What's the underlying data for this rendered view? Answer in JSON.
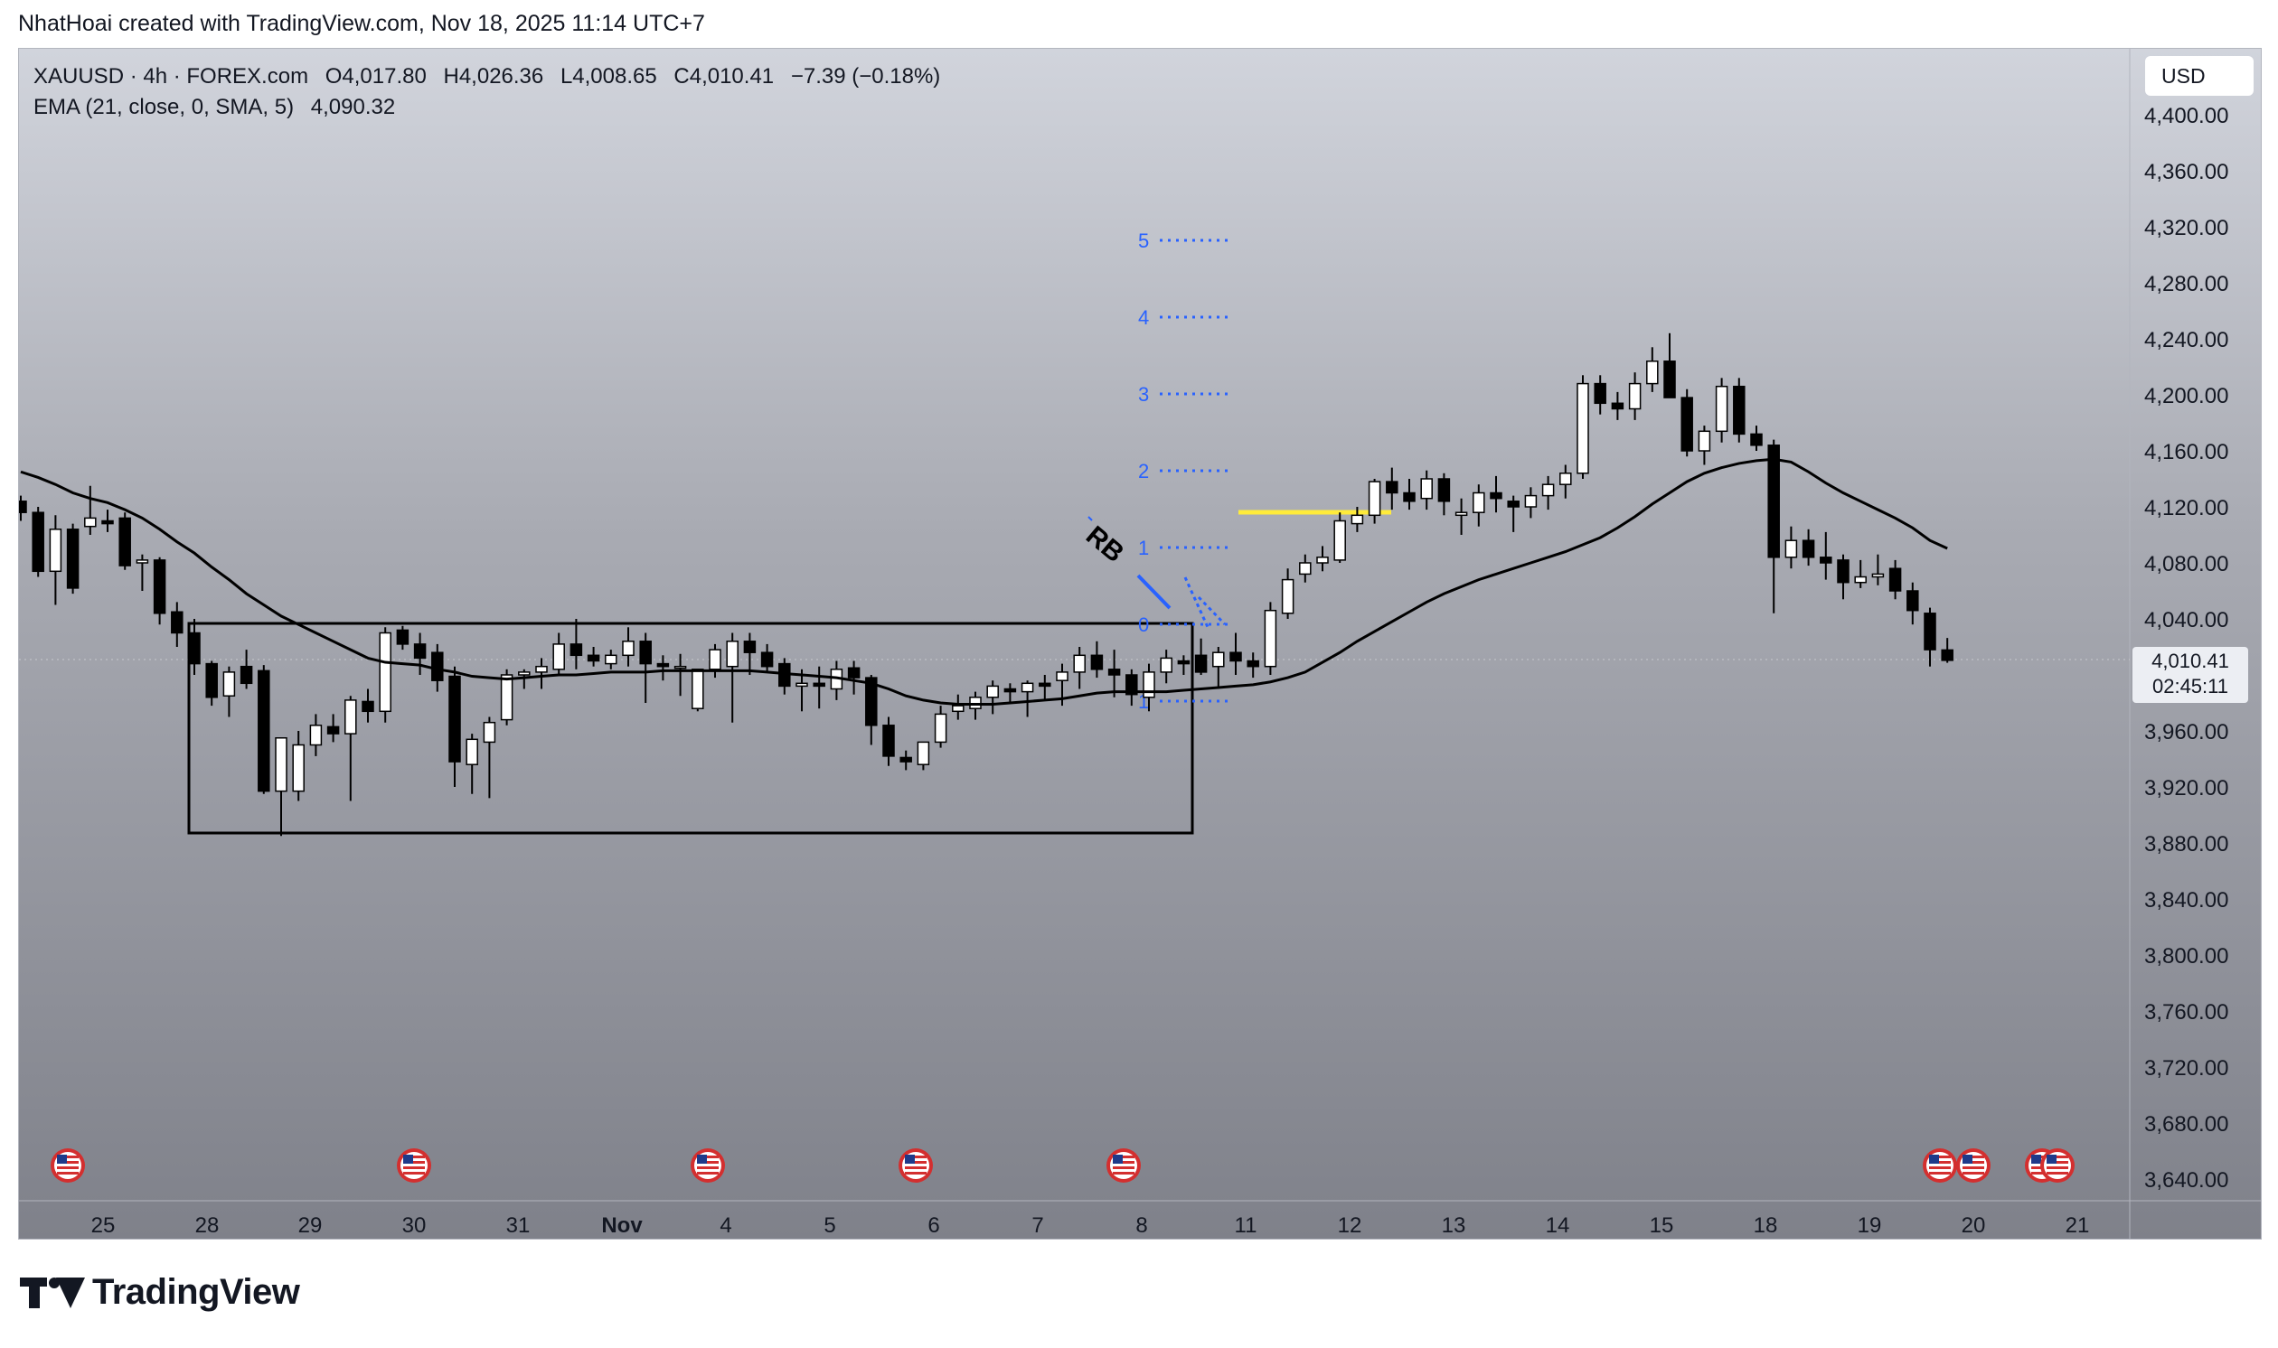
{
  "header": {
    "caption": "NhatHoai created with TradingView.com, Nov 18, 2025 11:14 UTC+7"
  },
  "legend": {
    "symbol": "XAUUSD · 4h · FOREX.com",
    "open": "O4,017.80",
    "high": "H4,026.36",
    "low": "L4,008.65",
    "close": "C4,010.41",
    "change": "−7.39 (−0.18%)",
    "indicator": "EMA (21, close, 0, SMA, 5)",
    "indicator_value": "4,090.32"
  },
  "currency_button": "USD",
  "last_price": {
    "value": "4,010.41",
    "countdown": "02:45:11"
  },
  "brand": {
    "name": "TradingView"
  },
  "colors": {
    "up_body": "#ffffff",
    "down_body": "#000000",
    "wick": "#000000",
    "ema": "#000000",
    "fib_level": "#2962ff",
    "highlight": "#ffeb3b",
    "range_box": "#000000"
  },
  "event_icons": {
    "icon": "us-flag-icon",
    "dates": [
      "Oct 25",
      "Oct 30",
      "Nov 3",
      "Nov 6",
      "Nov 8",
      "Nov 20",
      "Nov 20",
      "Nov 21",
      "Nov 21"
    ]
  },
  "annotations": {
    "label": "RB",
    "levels": [
      "1",
      "0",
      "1",
      "2",
      "3",
      "4",
      "5"
    ]
  },
  "chart_data": {
    "type": "candlestick",
    "symbol": "XAUUSD",
    "timeframe": "4h",
    "x_ticks": [
      "25",
      "28",
      "29",
      "30",
      "31",
      "Nov",
      "4",
      "5",
      "6",
      "7",
      "8",
      "11",
      "12",
      "13",
      "14",
      "15",
      "18",
      "19",
      "20",
      "21"
    ],
    "y_ticks": [
      "3,640.00",
      "3,680.00",
      "3,720.00",
      "3,760.00",
      "3,800.00",
      "3,840.00",
      "3,880.00",
      "3,920.00",
      "3,960.00",
      "4,000.00",
      "4,040.00",
      "4,080.00",
      "4,120.00",
      "4,160.00",
      "4,200.00",
      "4,240.00",
      "4,280.00",
      "4,320.00",
      "4,360.00",
      "4,400.00"
    ],
    "ylim": [
      3620,
      4435
    ],
    "candles_ohlc": [
      [
        4124,
        4128,
        4110,
        4116
      ],
      [
        4116,
        4120,
        4070,
        4074
      ],
      [
        4074,
        4114,
        4050,
        4104
      ],
      [
        4104,
        4108,
        4058,
        4062
      ],
      [
        4106,
        4135,
        4100,
        4112
      ],
      [
        4110,
        4118,
        4102,
        4108
      ],
      [
        4112,
        4116,
        4075,
        4078
      ],
      [
        4080,
        4086,
        4060,
        4082
      ],
      [
        4082,
        4084,
        4036,
        4044
      ],
      [
        4045,
        4052,
        4020,
        4030
      ],
      [
        4030,
        4040,
        4000,
        4008
      ],
      [
        4008,
        4010,
        3978,
        3984
      ],
      [
        3985,
        4006,
        3970,
        4002
      ],
      [
        4006,
        4018,
        3990,
        3994
      ],
      [
        4003,
        4007,
        3915,
        3917
      ],
      [
        3917,
        3940,
        3885,
        3955
      ],
      [
        3917,
        3960,
        3910,
        3950
      ],
      [
        3950,
        3972,
        3942,
        3964
      ],
      [
        3963,
        3972,
        3952,
        3958
      ],
      [
        3958,
        3985,
        3910,
        3982
      ],
      [
        3981,
        3990,
        3966,
        3974
      ],
      [
        3974,
        4034,
        3966,
        4030
      ],
      [
        4032,
        4035,
        4018,
        4022
      ],
      [
        4022,
        4030,
        4000,
        4012
      ],
      [
        4016,
        4022,
        3988,
        3996
      ],
      [
        3999,
        4006,
        3920,
        3938
      ],
      [
        3936,
        3958,
        3915,
        3954
      ],
      [
        3952,
        3970,
        3912,
        3966
      ],
      [
        3968,
        4004,
        3964,
        4000
      ],
      [
        4000,
        4004,
        3990,
        4002
      ],
      [
        4002,
        4012,
        3990,
        4006
      ],
      [
        4004,
        4030,
        4000,
        4022
      ],
      [
        4022,
        4040,
        4004,
        4014
      ],
      [
        4014,
        4020,
        4006,
        4010
      ],
      [
        4008,
        4018,
        4004,
        4014
      ],
      [
        4014,
        4034,
        4006,
        4024
      ],
      [
        4024,
        4030,
        3980,
        4008
      ],
      [
        4008,
        4014,
        3996,
        4006
      ],
      [
        4006,
        4015,
        3985,
        4006
      ],
      [
        3976,
        4000,
        3974,
        4004
      ],
      [
        4004,
        4022,
        3998,
        4018
      ],
      [
        4006,
        4030,
        3966,
        4024
      ],
      [
        4024,
        4030,
        4000,
        4016
      ],
      [
        4016,
        4022,
        4002,
        4006
      ],
      [
        4008,
        4012,
        3986,
        3992
      ],
      [
        3992,
        4004,
        3974,
        3994
      ],
      [
        3994,
        4006,
        3976,
        3992
      ],
      [
        3990,
        4010,
        3982,
        4004
      ],
      [
        4005,
        4010,
        3986,
        3998
      ],
      [
        3998,
        4000,
        3950,
        3964
      ],
      [
        3964,
        3970,
        3935,
        3942
      ],
      [
        3941,
        3946,
        3932,
        3938
      ],
      [
        3936,
        3952,
        3932,
        3952
      ],
      [
        3952,
        3978,
        3948,
        3972
      ],
      [
        3974,
        3986,
        3968,
        3978
      ],
      [
        3976,
        3988,
        3968,
        3984
      ],
      [
        3984,
        3996,
        3972,
        3992
      ],
      [
        3990,
        3994,
        3980,
        3988
      ],
      [
        3988,
        3996,
        3970,
        3994
      ],
      [
        3994,
        4000,
        3982,
        3992
      ],
      [
        3996,
        4008,
        3978,
        4002
      ],
      [
        4002,
        4020,
        3990,
        4014
      ],
      [
        4014,
        4024,
        3998,
        4004
      ],
      [
        4004,
        4018,
        3984,
        4000
      ],
      [
        4000,
        4004,
        3978,
        3986
      ],
      [
        3984,
        4008,
        3974,
        4002
      ],
      [
        4002,
        4018,
        3994,
        4012
      ],
      [
        4010,
        4014,
        4000,
        4008
      ],
      [
        4014,
        4026,
        4000,
        4002
      ],
      [
        4006,
        4020,
        3990,
        4016
      ],
      [
        4016,
        4030,
        4000,
        4010
      ],
      [
        4010,
        4016,
        3998,
        4006
      ],
      [
        4006,
        4052,
        4000,
        4046
      ],
      [
        4044,
        4076,
        4040,
        4068
      ],
      [
        4072,
        4086,
        4066,
        4080
      ],
      [
        4080,
        4092,
        4074,
        4084
      ],
      [
        4082,
        4116,
        4080,
        4110
      ],
      [
        4108,
        4120,
        4102,
        4114
      ],
      [
        4114,
        4140,
        4108,
        4138
      ],
      [
        4138,
        4148,
        4118,
        4130
      ],
      [
        4130,
        4140,
        4118,
        4124
      ],
      [
        4126,
        4146,
        4118,
        4140
      ],
      [
        4140,
        4144,
        4114,
        4124
      ],
      [
        4114,
        4126,
        4100,
        4116
      ],
      [
        4116,
        4136,
        4106,
        4130
      ],
      [
        4130,
        4142,
        4116,
        4126
      ],
      [
        4124,
        4128,
        4102,
        4120
      ],
      [
        4120,
        4134,
        4112,
        4128
      ],
      [
        4128,
        4142,
        4118,
        4136
      ],
      [
        4136,
        4150,
        4126,
        4144
      ],
      [
        4144,
        4214,
        4140,
        4208
      ],
      [
        4208,
        4214,
        4186,
        4194
      ],
      [
        4194,
        4202,
        4182,
        4190
      ],
      [
        4190,
        4216,
        4182,
        4208
      ],
      [
        4208,
        4234,
        4202,
        4224
      ],
      [
        4224,
        4244,
        4210,
        4198
      ],
      [
        4198,
        4204,
        4156,
        4160
      ],
      [
        4160,
        4178,
        4150,
        4174
      ],
      [
        4174,
        4212,
        4166,
        4206
      ],
      [
        4206,
        4212,
        4166,
        4172
      ],
      [
        4172,
        4178,
        4160,
        4164
      ],
      [
        4164,
        4168,
        4044,
        4084
      ],
      [
        4084,
        4106,
        4076,
        4096
      ],
      [
        4096,
        4104,
        4078,
        4084
      ],
      [
        4084,
        4102,
        4068,
        4080
      ],
      [
        4082,
        4086,
        4054,
        4066
      ],
      [
        4066,
        4082,
        4062,
        4070
      ],
      [
        4070,
        4086,
        4064,
        4072
      ],
      [
        4076,
        4082,
        4054,
        4060
      ],
      [
        4060,
        4066,
        4036,
        4046
      ],
      [
        4044,
        4048,
        4006,
        4018
      ],
      [
        4017.8,
        4026.36,
        4008.65,
        4010.41
      ]
    ],
    "ema": [
      4145,
      4141,
      4136,
      4130,
      4126,
      4123,
      4118,
      4112,
      4104,
      4095,
      4087,
      4077,
      4068,
      4058,
      4050,
      4042,
      4036,
      4030,
      4024,
      4018,
      4012,
      4009,
      4008,
      4007,
      4004,
      4002,
      3999,
      3998,
      3997,
      3998,
      3999,
      4000,
      4000,
      4001,
      4002,
      4002,
      4002,
      4003,
      4003,
      4003,
      4003,
      4003,
      4003,
      4002,
      4001,
      4000,
      3999,
      3998,
      3996,
      3994,
      3990,
      3985,
      3982,
      3980,
      3979,
      3979,
      3979,
      3980,
      3981,
      3982,
      3983,
      3985,
      3987,
      3988,
      3988,
      3988,
      3988,
      3989,
      3990,
      3991,
      3992,
      3993,
      3995,
      3998,
      4002,
      4009,
      4016,
      4024,
      4031,
      4038,
      4045,
      4052,
      4058,
      4063,
      4068,
      4072,
      4076,
      4080,
      4084,
      4088,
      4093,
      4098,
      4105,
      4113,
      4122,
      4130,
      4138,
      4144,
      4148,
      4151,
      4153,
      4154,
      4152,
      4145,
      4137,
      4130,
      4124,
      4118,
      4112,
      4105,
      4096,
      4090.32
    ]
  }
}
